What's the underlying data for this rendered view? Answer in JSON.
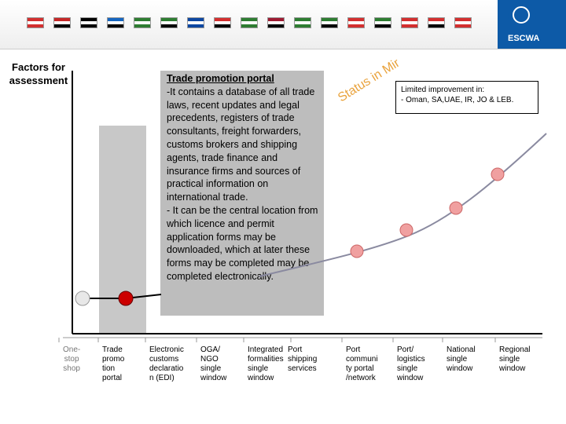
{
  "header": {
    "flag_colors": [
      "#d32f2f",
      "#c62828",
      "#000000",
      "#1565c0",
      "#2e7d32",
      "#2e7d32",
      "#0d47a1",
      "#d32f2f",
      "#2e7d32",
      "#9e1b32",
      "#2e7d32",
      "#2e7d32",
      "#d32f2f",
      "#2e7d32",
      "#d32f2f",
      "#d32f2f",
      "#d32f2f"
    ],
    "org_label": "ESCWA",
    "accent_color": "#0d5aa7"
  },
  "left_title": "Factors for assessment",
  "portal": {
    "title": "Trade promotion portal",
    "body": "-It contains a database of all trade laws, recent updates and legal precedents, registers of trade consultants, freight forwarders, customs brokers and shipping agents, trade finance and insurance firms and sources of practical information on international trade.",
    "body2": "- It can be the central location from which licence and permit application forms may be downloaded, which at later these forms may be completed may be completed electronically."
  },
  "status_label": "Status in Mir",
  "limited": {
    "line1": "Limited improvement in:",
    "line2": "- Oman, SA,UAE, IR, JO & LEB."
  },
  "stages": [
    {
      "label": "One-\nstop\nshop",
      "muted": true
    },
    {
      "label": "Trade\npromo\ntion\nportal",
      "muted": false
    },
    {
      "label": "Electronic\ncustoms\ndeclaratio\nn (EDI)",
      "muted": false
    },
    {
      "label": "OGA/\nNGO\nsingle\nwindow",
      "muted": false
    },
    {
      "label": "Integrated\nformalities\nsingle\nwindow",
      "muted": false
    },
    {
      "label": "Port\nshipping\nservices",
      "muted": false
    },
    {
      "label": "Port\ncommuni\nty portal\n/network",
      "muted": false
    },
    {
      "label": "Port/\nlogistics\nsingle\nwindow",
      "muted": false
    },
    {
      "label": "National\nsingle\nwindow",
      "muted": false
    },
    {
      "label": "Regional\nsingle\nwindow",
      "muted": false
    }
  ],
  "colors": {
    "dot_red": "#cc0000",
    "dot_pink": "#f0a0a0",
    "dot_gray": "#e8e8e8",
    "curve": "#8a8aa0"
  }
}
